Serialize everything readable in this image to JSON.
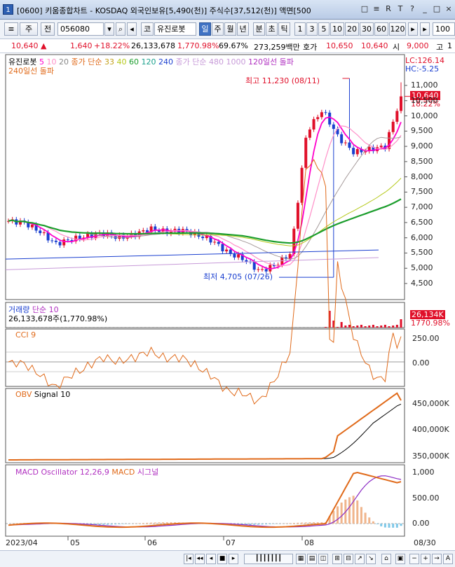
{
  "window": {
    "number": "1",
    "title": "[0600] 키움종합차트 - KOSDAQ 외국인보유[5,490(천)] 주식수[37,512(천)] 액면[500",
    "controls": [
      "□",
      "≡",
      "R",
      "T",
      "?",
      "_",
      "□",
      "×"
    ]
  },
  "toolbar": {
    "period_select": "주",
    "prev_label": "전",
    "code_value": "056080",
    "market_label": "코",
    "stock_name": "유진로봇",
    "period_buttons": [
      "일",
      "주",
      "월",
      "년",
      "분",
      "초",
      "틱"
    ],
    "selected_period": "일",
    "interval_buttons": [
      "1",
      "3",
      "5",
      "10",
      "20",
      "30",
      "60",
      "120"
    ],
    "count_value": "100"
  },
  "info": {
    "price": "10,640",
    "arrow": "▲",
    "change": "1,640",
    "change_pct": "+18.22%",
    "volume": "26,133,678",
    "volume_pct": "1,770.98%",
    "ratio": "69.67%",
    "amount": "273,259백만",
    "bid_label": "호가",
    "bid": "10,650",
    "ask": "10,640",
    "open_label": "시",
    "open": "9,000",
    "high_label": "고",
    "high_digit": "1"
  },
  "price_panel": {
    "legend_name": "유진로봇",
    "ma_labels": [
      "5",
      "10",
      "20"
    ],
    "legend_close": "종가 단순",
    "ma_labels2": [
      "33",
      "40",
      "60",
      "120",
      "240"
    ],
    "legend_close2": "종가 단순",
    "ma_labels3": [
      "480",
      "1000"
    ],
    "legend_break1": "120일선 돌파",
    "legend_break2": "240일선 돌파",
    "lc": "LC:126.14",
    "hc": "HC:-5.25",
    "max_label": "최고 11,230 (08/11)",
    "min_label": "최저 4,705 (07/26)",
    "current_price": "10,640",
    "current_pct": "18.22%",
    "y_ticks": [
      "11,000",
      "10,500",
      "10,000",
      "9,500",
      "9,000",
      "8,500",
      "8,000",
      "7,500",
      "7,000",
      "6,500",
      "6,000",
      "5,500",
      "5,000",
      "4,500"
    ]
  },
  "volume_panel": {
    "legend": "거래량",
    "legend2": "단순 10",
    "value_text": "26,133,678주(1,770.98%)",
    "badge": "26,134K",
    "badge_pct": "1770.98%"
  },
  "cci_panel": {
    "legend": "CCI 9",
    "y_ticks": [
      "250.00",
      "0.00"
    ]
  },
  "obv_panel": {
    "legend": "OBV",
    "legend2": "Signal 10",
    "y_ticks": [
      "450,000K",
      "400,000K",
      "350,000K"
    ]
  },
  "macd_panel": {
    "legend": "MACD Oscillator 12,26,9",
    "legend2": "MACD",
    "legend3": "시그널",
    "y_ticks": [
      "1,000",
      "500.00",
      "0.00"
    ]
  },
  "x_axis": {
    "labels": [
      "2023/04",
      "05",
      "06",
      "07",
      "08"
    ],
    "end_label": "08/30"
  },
  "colors": {
    "up": "#e0102a",
    "down": "#1a3fd0",
    "ma5": "#ff00cc",
    "ma20": "#ff8fc8",
    "ma60": "#1b9d2c",
    "cci": "#e06a1a",
    "obv": "#e06a1a",
    "macd": "#e06a1a",
    "signal": "#8b2bc4"
  },
  "chart_data": {
    "type": "line",
    "x": [
      "2023/04",
      "05",
      "06",
      "07",
      "08",
      "08/30"
    ],
    "price_range": [
      4500,
      11000
    ],
    "high": {
      "value": 11230,
      "date": "08/11"
    },
    "low": {
      "value": 4705,
      "date": "07/26"
    },
    "last_close": 10640,
    "approx_close_series": [
      6550,
      6500,
      6200,
      5800,
      5950,
      6050,
      6150,
      6000,
      6100,
      6300,
      6200,
      6250,
      6100,
      5900,
      5500,
      5300,
      4900,
      5100,
      5500,
      9500,
      10200,
      9300,
      8800,
      8900,
      9000,
      10640
    ]
  }
}
